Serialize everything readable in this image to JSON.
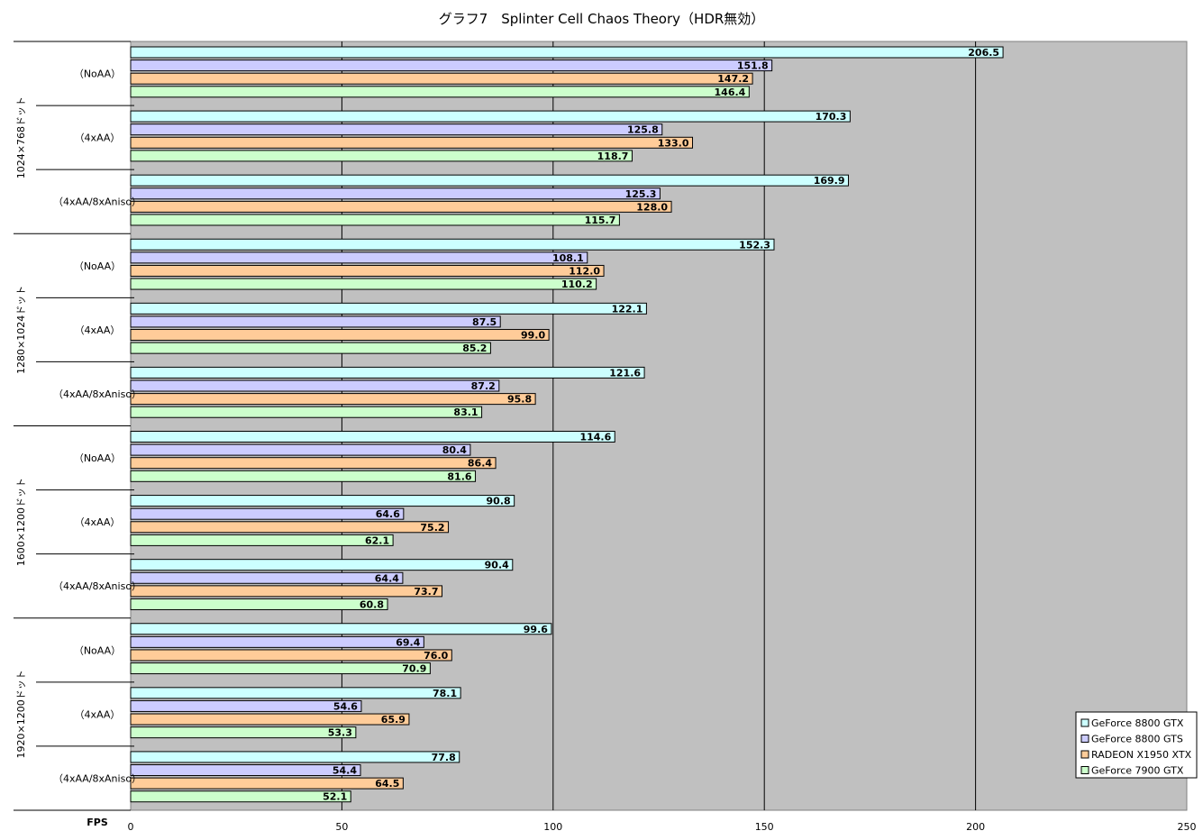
{
  "chart_data": {
    "type": "bar",
    "orientation": "horizontal",
    "title": "グラフ7　Splinter Cell Chaos Theory（HDR無効）",
    "xlabel": "FPS",
    "xlim": [
      0,
      250
    ],
    "xticks": [
      0,
      50,
      100,
      150,
      200,
      250
    ],
    "grid": true,
    "legend_position": "bottom-right",
    "groups": [
      {
        "label": "1024×768ドット",
        "settings": [
          {
            "label": "（NoAA）",
            "values": [
              206.5,
              151.8,
              147.2,
              146.4
            ]
          },
          {
            "label": "（4xAA）",
            "values": [
              170.3,
              125.8,
              133.0,
              118.7
            ]
          },
          {
            "label": "（4xAA/8xAniso）",
            "values": [
              169.9,
              125.3,
              128.0,
              115.7
            ]
          }
        ]
      },
      {
        "label": "1280×1024ドット",
        "settings": [
          {
            "label": "（NoAA）",
            "values": [
              152.3,
              108.1,
              112.0,
              110.2
            ]
          },
          {
            "label": "（4xAA）",
            "values": [
              122.1,
              87.5,
              99.0,
              85.2
            ]
          },
          {
            "label": "（4xAA/8xAniso）",
            "values": [
              121.6,
              87.2,
              95.8,
              83.1
            ]
          }
        ]
      },
      {
        "label": "1600×1200ドット",
        "settings": [
          {
            "label": "（NoAA）",
            "values": [
              114.6,
              80.4,
              86.4,
              81.6
            ]
          },
          {
            "label": "（4xAA）",
            "values": [
              90.8,
              64.6,
              75.2,
              62.1
            ]
          },
          {
            "label": "（4xAA/8xAniso）",
            "values": [
              90.4,
              64.4,
              73.7,
              60.8
            ]
          }
        ]
      },
      {
        "label": "1920×1200ドット",
        "settings": [
          {
            "label": "（NoAA）",
            "values": [
              99.6,
              69.4,
              76.0,
              70.9
            ]
          },
          {
            "label": "（4xAA）",
            "values": [
              78.1,
              54.6,
              65.9,
              53.3
            ]
          },
          {
            "label": "（4xAA/8xAniso）",
            "values": [
              77.8,
              54.4,
              64.5,
              52.1
            ]
          }
        ]
      }
    ],
    "series": [
      {
        "name": "GeForce 8800 GTX",
        "color": "#ccffff"
      },
      {
        "name": "GeForce 8800 GTS",
        "color": "#ccccff"
      },
      {
        "name": "RADEON X1950 XTX",
        "color": "#ffcc99"
      },
      {
        "name": "GeForce 7900 GTX",
        "color": "#ccffcc"
      }
    ],
    "colors": {
      "plot_background": "#c0c0c0",
      "gridline": "#000000",
      "bar_border": "#000000"
    }
  }
}
